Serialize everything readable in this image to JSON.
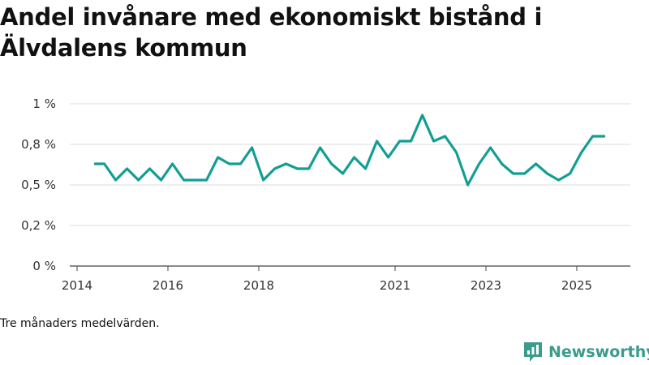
{
  "title": "Andel invånare med ekonomiskt bistånd i Älvdalens kommun",
  "note": "Tre månaders medelvärden.",
  "brand": {
    "name": "Newsworthy",
    "color": "#3a9c8a"
  },
  "line_color": "#139e93",
  "chart_data": {
    "type": "line",
    "title": "Andel invånare med ekonomiskt bistånd i Älvdalens kommun",
    "xlabel": "",
    "ylabel": "",
    "x_ticks": [
      2014,
      2016,
      2018,
      2021,
      2023,
      2025
    ],
    "x_tick_labels": [
      "2014",
      "2016",
      "2018",
      "2021",
      "2023",
      "2025"
    ],
    "y_ticks": [
      0,
      0.25,
      0.5,
      0.75,
      1.0
    ],
    "y_tick_labels": [
      "0 %",
      "0,2 %",
      "0,5 %",
      "0,8 %",
      "1 %"
    ],
    "ylim": [
      0,
      1.0
    ],
    "xlim": [
      2014.0,
      2025.0
    ],
    "grid": true,
    "series": [
      {
        "name": "Andel invånare med ekonomiskt bistånd",
        "x": [
          2014.4,
          2014.6,
          2014.85,
          2015.1,
          2015.35,
          2015.6,
          2015.85,
          2016.1,
          2016.35,
          2016.6,
          2016.85,
          2017.1,
          2017.35,
          2017.6,
          2017.85,
          2018.1,
          2018.35,
          2018.6,
          2018.85,
          2019.1,
          2019.35,
          2019.6,
          2019.85,
          2020.1,
          2020.35,
          2020.6,
          2020.85,
          2021.1,
          2021.35,
          2021.6,
          2021.85,
          2022.1,
          2022.35,
          2022.6,
          2022.85,
          2023.1,
          2023.35,
          2023.6,
          2023.85,
          2024.1,
          2024.35,
          2024.6,
          2024.85,
          2025.1,
          2025.35,
          2025.6
        ],
        "values": [
          0.63,
          0.63,
          0.53,
          0.6,
          0.53,
          0.6,
          0.53,
          0.63,
          0.53,
          0.53,
          0.53,
          0.67,
          0.63,
          0.63,
          0.73,
          0.53,
          0.6,
          0.63,
          0.6,
          0.6,
          0.73,
          0.63,
          0.57,
          0.67,
          0.6,
          0.77,
          0.67,
          0.77,
          0.77,
          0.93,
          0.77,
          0.8,
          0.7,
          0.5,
          0.63,
          0.73,
          0.63,
          0.57,
          0.57,
          0.63,
          0.57,
          0.53,
          0.57,
          0.7,
          0.8,
          0.8
        ]
      }
    ]
  }
}
